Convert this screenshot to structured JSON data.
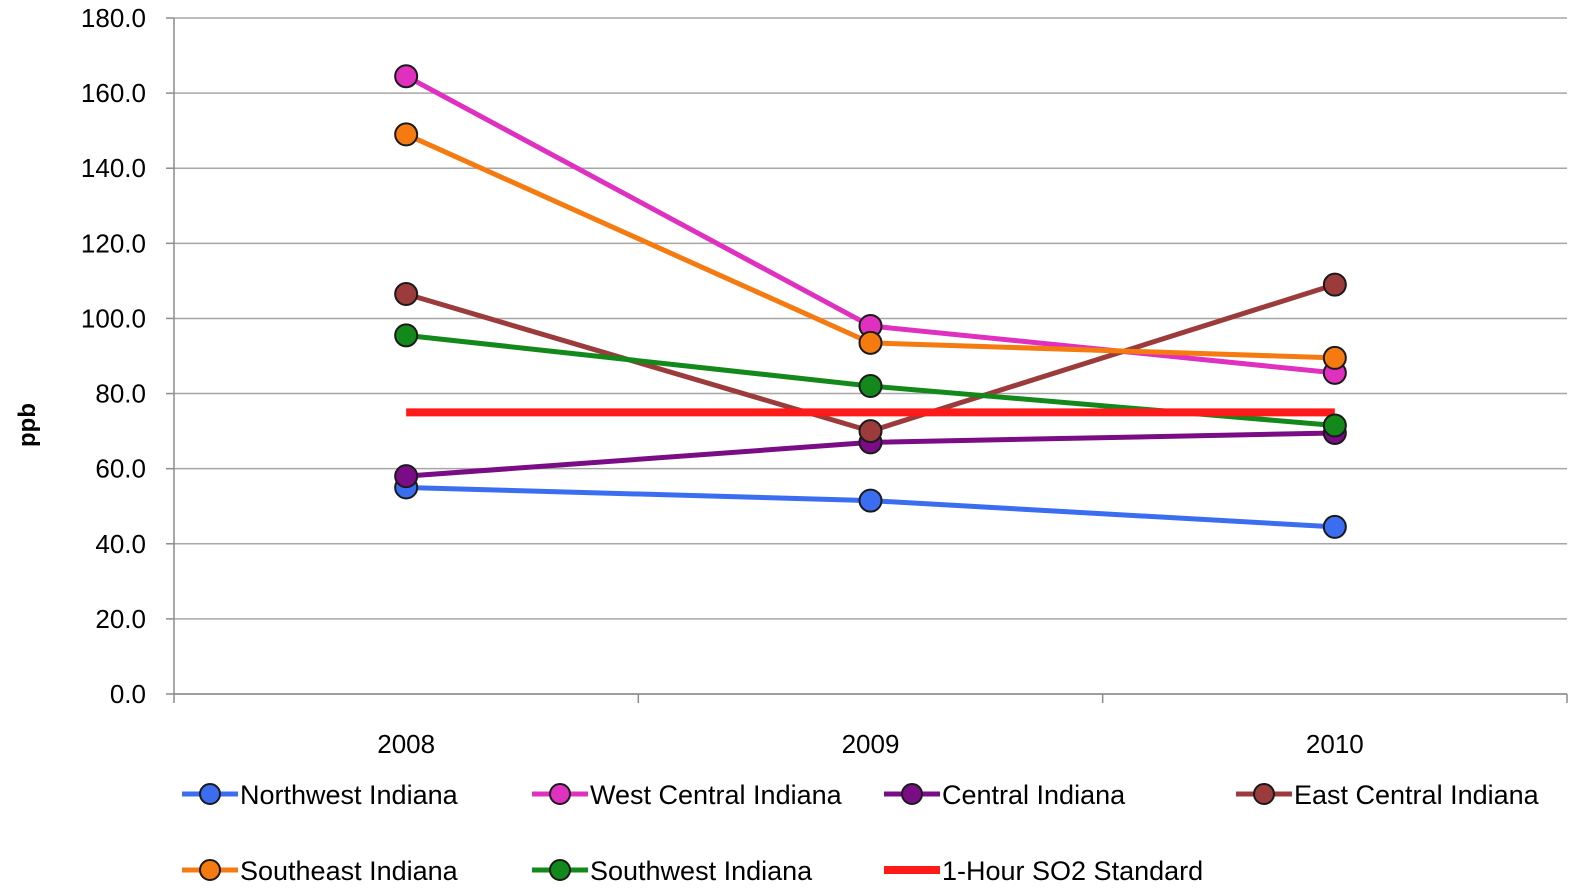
{
  "chart_data": {
    "type": "line",
    "title": "",
    "xlabel": "",
    "ylabel": "ppb",
    "categories": [
      "2008",
      "2009",
      "2010"
    ],
    "ylim": [
      0,
      180
    ],
    "ytick_step": 20,
    "ytick_labels": [
      "0.0",
      "20.0",
      "40.0",
      "60.0",
      "80.0",
      "100.0",
      "120.0",
      "140.0",
      "160.0",
      "180.0"
    ],
    "grid": true,
    "legend_position": "bottom",
    "series": [
      {
        "name": "Northwest Indiana",
        "values": [
          55.0,
          51.5,
          44.5
        ],
        "color": "#3a6df0",
        "marker": true
      },
      {
        "name": "West Central Indiana",
        "values": [
          164.5,
          98.0,
          85.5
        ],
        "color": "#e030c0",
        "marker": true
      },
      {
        "name": "Central Indiana",
        "values": [
          58.0,
          67.0,
          69.5
        ],
        "color": "#7a0d85",
        "marker": true
      },
      {
        "name": "East Central Indiana",
        "values": [
          106.5,
          70.0,
          109.0
        ],
        "color": "#9c3b3b",
        "marker": true
      },
      {
        "name": "Southeast Indiana",
        "values": [
          149.0,
          93.5,
          89.5
        ],
        "color": "#f57a10",
        "marker": true
      },
      {
        "name": "Southwest Indiana",
        "values": [
          95.5,
          82.0,
          71.5
        ],
        "color": "#12891a",
        "marker": true
      },
      {
        "name": "1-Hour SO2 Standard",
        "values": [
          75,
          75,
          75
        ],
        "color": "#ff1a1a",
        "marker": false
      }
    ]
  }
}
